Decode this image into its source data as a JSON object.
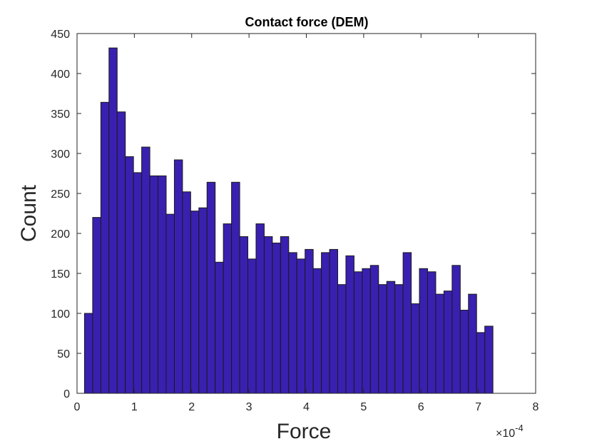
{
  "chart_data": {
    "type": "bar",
    "title": "Contact force (DEM)",
    "xlabel": "Force",
    "ylabel": "Count",
    "x_exponent_base": "×10",
    "x_exponent_power": "-4",
    "xlim": [
      0,
      8
    ],
    "ylim": [
      0,
      450
    ],
    "xticks": [
      0,
      1,
      2,
      3,
      4,
      5,
      6,
      7,
      8
    ],
    "yticks": [
      0,
      50,
      100,
      150,
      200,
      250,
      300,
      350,
      400,
      450
    ],
    "bin_start": 0.13,
    "bin_width": 0.1425,
    "values": [
      100,
      220,
      364,
      432,
      352,
      296,
      276,
      308,
      272,
      272,
      224,
      292,
      252,
      228,
      232,
      264,
      164,
      212,
      264,
      196,
      168,
      212,
      196,
      188,
      196,
      176,
      168,
      180,
      156,
      176,
      180,
      136,
      172,
      152,
      156,
      160,
      136,
      140,
      136,
      176,
      112,
      156,
      152,
      124,
      128,
      160,
      104,
      124,
      76,
      84
    ],
    "grid": false,
    "bar_color": "#3a20b0",
    "bar_edge_color": "#1a1a1a"
  }
}
